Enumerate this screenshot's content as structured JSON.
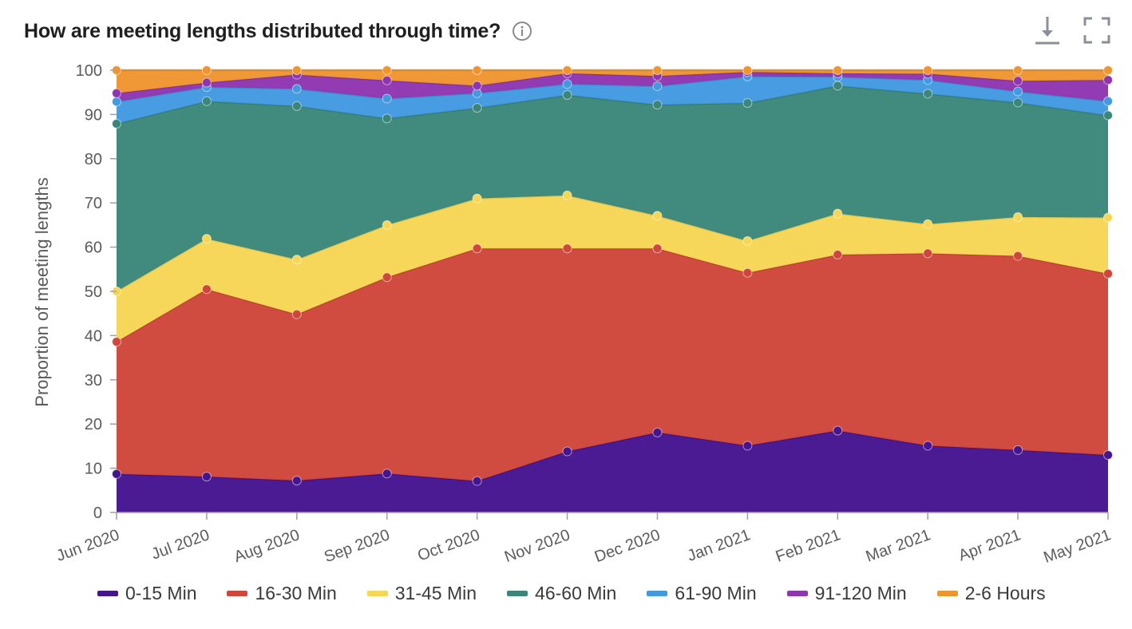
{
  "header": {
    "title": "How are meeting lengths distributed through time?",
    "info_icon": "info-circle-icon",
    "download_icon": "download-icon",
    "fullscreen_icon": "fullscreen-icon"
  },
  "chart_data": {
    "type": "area",
    "stacked": true,
    "ylabel": "Proportion of meeting lengths",
    "xlabel": "",
    "ylim": [
      0,
      100
    ],
    "yticks": [
      0,
      10,
      20,
      30,
      40,
      50,
      60,
      70,
      80,
      90,
      100
    ],
    "grid": false,
    "legend_position": "bottom",
    "categories": [
      "Jun 2020",
      "Jul 2020",
      "Aug 2020",
      "Sep 2020",
      "Oct 2020",
      "Nov 2020",
      "Dec 2020",
      "Jan 2021",
      "Feb 2021",
      "Mar 2021",
      "Apr 2021",
      "May 2021"
    ],
    "series": [
      {
        "name": "0-15 Min",
        "color": "#45148f",
        "values": [
          8.7,
          8.1,
          7.2,
          8.8,
          7.1,
          13.8,
          18.1,
          15.1,
          18.5,
          15.1,
          14.1,
          13.0
        ]
      },
      {
        "name": "16-30 Min",
        "color": "#d0463a",
        "values": [
          29.9,
          42.4,
          37.6,
          44.4,
          52.6,
          45.9,
          41.6,
          39.1,
          39.8,
          43.5,
          43.9,
          41.0
        ]
      },
      {
        "name": "31-45 Min",
        "color": "#f7d655",
        "values": [
          11.4,
          11.4,
          12.4,
          11.8,
          11.3,
          12.0,
          7.4,
          7.2,
          9.3,
          6.6,
          8.8,
          12.7
        ]
      },
      {
        "name": "46-60 Min",
        "color": "#3a877a",
        "values": [
          37.9,
          31.1,
          34.7,
          24.1,
          20.5,
          22.7,
          25.1,
          31.2,
          28.9,
          29.5,
          25.9,
          23.1
        ]
      },
      {
        "name": "61-90 Min",
        "color": "#4299e1",
        "values": [
          5.0,
          3.2,
          3.9,
          4.5,
          3.3,
          2.5,
          4.2,
          6.0,
          2.0,
          3.1,
          2.5,
          3.2
        ]
      },
      {
        "name": "91-120 Min",
        "color": "#8e35b0",
        "values": [
          1.9,
          1.0,
          3.2,
          4.1,
          1.7,
          2.4,
          2.3,
          1.0,
          0.8,
          1.4,
          2.4,
          4.8
        ]
      },
      {
        "name": "2-6 Hours",
        "color": "#f0952e",
        "values": [
          5.2,
          2.8,
          1.0,
          2.3,
          3.5,
          0.7,
          1.3,
          0.4,
          0.7,
          0.8,
          2.4,
          2.2
        ]
      }
    ]
  }
}
